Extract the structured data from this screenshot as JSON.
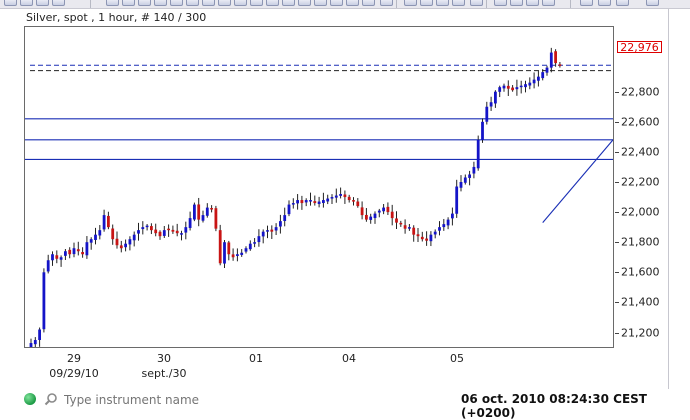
{
  "chart_info": "Silver, spot , 1 hour, # 140 / 300",
  "price_label": "22,976",
  "y_ticks": [
    "22,800",
    "22,600",
    "22,400",
    "22,200",
    "22,000",
    "21,800",
    "21,600",
    "21,400",
    "21,200"
  ],
  "x_ticks": [
    {
      "label": "29",
      "sub": "09/29/10"
    },
    {
      "label": "30",
      "sub": "sept./30"
    },
    {
      "label": "01",
      "sub": ""
    },
    {
      "label": "04",
      "sub": ""
    },
    {
      "label": "05",
      "sub": ""
    }
  ],
  "search": {
    "placeholder": "Type instrument name"
  },
  "clock": "06 oct. 2010 08:24:30  CEST (+0200)",
  "colors": {
    "up": "#1414c8",
    "down": "#c81414",
    "hline": "#1a2fb5",
    "dashed_blue": "#1a2fb5",
    "dashed_black": "#222222",
    "price_box": "#d00000"
  },
  "chart_data": {
    "type": "candlestick",
    "y_range": [
      21000,
      23100
    ],
    "horizontal_levels": [
      22620,
      22480,
      22350
    ],
    "dashed_levels": [
      {
        "value": 22976,
        "color": "blue"
      },
      {
        "value": 22940,
        "color": "black"
      }
    ],
    "trendline": [
      [
        143,
        21930
      ],
      [
        176,
        23040
      ]
    ],
    "closes": [
      21130,
      21150,
      21220,
      21600,
      21680,
      21720,
      21690,
      21700,
      21740,
      21720,
      21760,
      21740,
      21720,
      21800,
      21820,
      21850,
      21880,
      21980,
      21900,
      21820,
      21780,
      21760,
      21790,
      21820,
      21850,
      21880,
      21900,
      21910,
      21880,
      21860,
      21840,
      21880,
      21880,
      21870,
      21860,
      21860,
      21900,
      21960,
      22050,
      21950,
      21980,
      22030,
      22020,
      21890,
      21660,
      21800,
      21720,
      21700,
      21720,
      21730,
      21760,
      21790,
      21800,
      21840,
      21870,
      21880,
      21870,
      21900,
      21940,
      21980,
      22050,
      22060,
      22080,
      22060,
      22080,
      22080,
      22060,
      22070,
      22080,
      22090,
      22100,
      22110,
      22120,
      22100,
      22080,
      22070,
      22040,
      21980,
      21950,
      21970,
      21990,
      22010,
      22030,
      22000,
      21960,
      21930,
      21920,
      21890,
      21900,
      21850,
      21840,
      21820,
      21810,
      21850,
      21870,
      21900,
      21920,
      21950,
      21990,
      22170,
      22200,
      22230,
      22250,
      22300,
      22480,
      22600,
      22700,
      22730,
      22800,
      22830,
      22840,
      22820,
      22810,
      22830,
      22840,
      22850,
      22860,
      22880,
      22900,
      22930,
      22960,
      23060,
      22990,
      22976
    ]
  }
}
